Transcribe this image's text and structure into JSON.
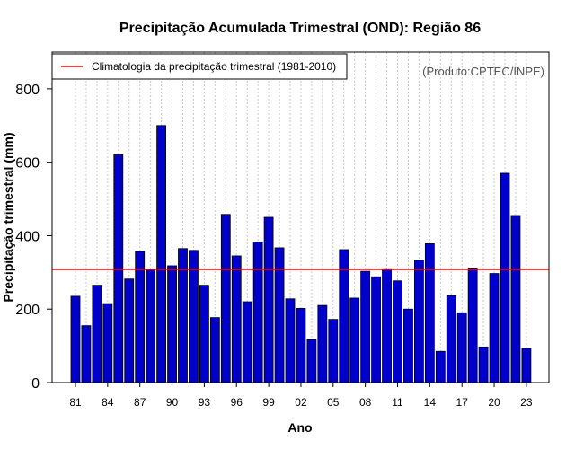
{
  "chart_data": {
    "type": "bar",
    "title": "Precipitação Acumulada Trimestral (OND): Região 86",
    "xlabel": "Ano",
    "ylabel": "Precipitação trimestral (mm)",
    "credit": "(Produto:CPTEC/INPE)",
    "legend": {
      "label": "Climatologia da precipitação trimestral (1981-2010)",
      "placement": "top-left",
      "color": "#ff0000"
    },
    "climatology": 308,
    "ylim": [
      0,
      900
    ],
    "yticks": [
      0,
      200,
      400,
      600,
      800
    ],
    "categories": [
      "1981",
      "1982",
      "1983",
      "1984",
      "1985",
      "1986",
      "1987",
      "1988",
      "1989",
      "1990",
      "1991",
      "1992",
      "1993",
      "1994",
      "1995",
      "1996",
      "1997",
      "1998",
      "1999",
      "2000",
      "2001",
      "2002",
      "2003",
      "2004",
      "2005",
      "2006",
      "2007",
      "2008",
      "2009",
      "2010",
      "2011",
      "2012",
      "2013",
      "2014",
      "2015",
      "2016",
      "2017",
      "2018",
      "2019",
      "2020",
      "2021",
      "2022",
      "2023"
    ],
    "xtick_labels": [
      "81",
      "84",
      "87",
      "90",
      "93",
      "96",
      "99",
      "02",
      "05",
      "08",
      "11",
      "14",
      "17",
      "20",
      "23"
    ],
    "xtick_every": 3,
    "values": [
      235,
      155,
      265,
      215,
      620,
      282,
      357,
      307,
      700,
      318,
      365,
      360,
      265,
      177,
      458,
      345,
      220,
      383,
      450,
      367,
      228,
      202,
      117,
      210,
      172,
      362,
      230,
      303,
      288,
      310,
      277,
      200,
      333,
      378,
      85,
      237,
      190,
      312,
      97,
      297,
      570,
      455,
      93
    ],
    "bar_color": "#0000cd",
    "bar_edge": "#000000",
    "grid": "vertical-dotted"
  }
}
